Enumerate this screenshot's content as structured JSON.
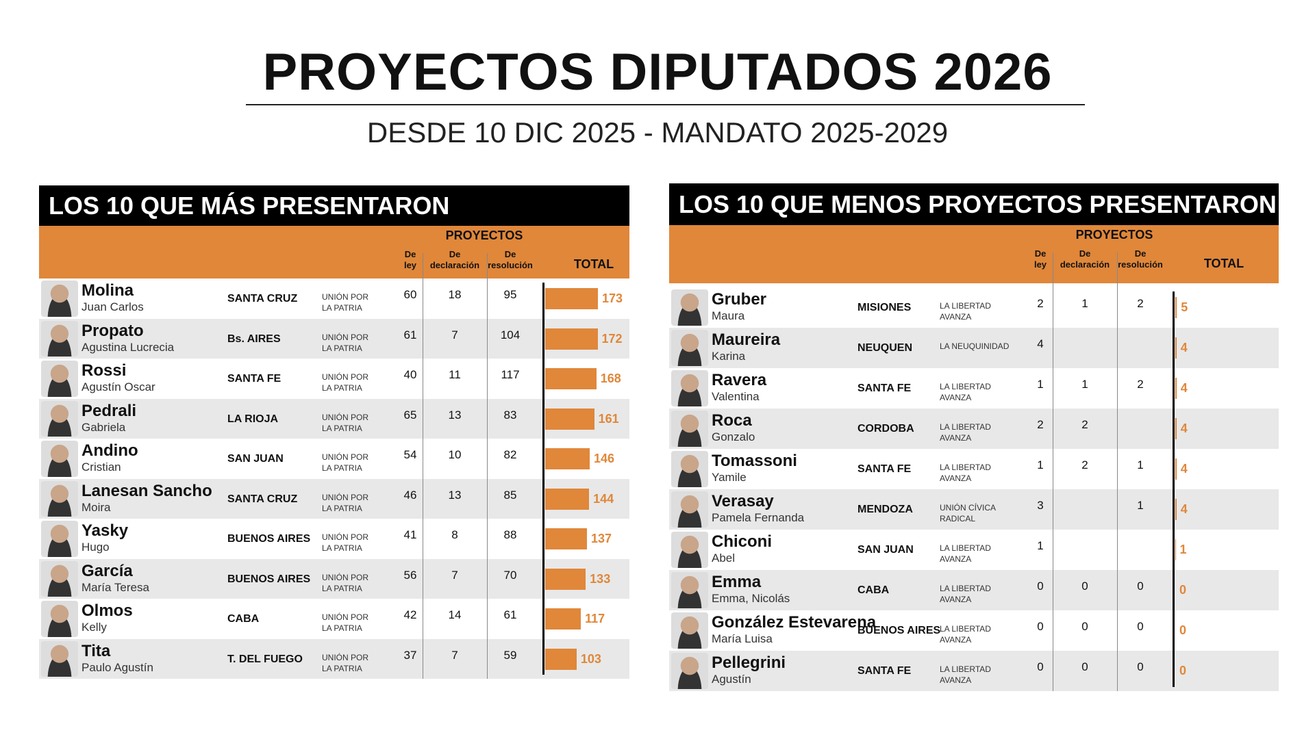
{
  "header": {
    "title": "PROYECTOS DIPUTADOS 2026",
    "subtitle": "DESDE 10 DIC 2025 - MANDATO 2025-2029"
  },
  "tables": [
    {
      "title": "LOS 10 QUE MÁS PRESENTARON",
      "group": "PROYECTOS",
      "columns": [
        "De ley",
        "De declaración",
        "De resolución",
        "TOTAL"
      ],
      "rows": [
        {
          "surname": "Molina",
          "first_name": "Juan Carlos",
          "province": "SANTA CRUZ",
          "party": "UNIÓN POR LA PATRIA",
          "de_ley": 60,
          "de_declaracion": 18,
          "de_resolucion": 95,
          "total": 173
        },
        {
          "surname": "Propato",
          "first_name": "Agustina Lucrecia",
          "province": "Bs. AIRES",
          "party": "UNIÓN POR LA PATRIA",
          "de_ley": 61,
          "de_declaracion": 7,
          "de_resolucion": 104,
          "total": 172
        },
        {
          "surname": "Rossi",
          "first_name": "Agustín Oscar",
          "province": "SANTA FE",
          "party": "UNIÓN POR LA PATRIA",
          "de_ley": 40,
          "de_declaracion": 11,
          "de_resolucion": 117,
          "total": 168
        },
        {
          "surname": "Pedrali",
          "first_name": "Gabriela",
          "province": "LA RIOJA",
          "party": "UNIÓN POR LA PATRIA",
          "de_ley": 65,
          "de_declaracion": 13,
          "de_resolucion": 83,
          "total": 161
        },
        {
          "surname": "Andino",
          "first_name": "Cristian",
          "province": "SAN JUAN",
          "party": "UNIÓN POR LA PATRIA",
          "de_ley": 54,
          "de_declaracion": 10,
          "de_resolucion": 82,
          "total": 146
        },
        {
          "surname": "Lanesan Sancho",
          "first_name": "Moira",
          "province": "SANTA CRUZ",
          "party": "UNIÓN POR LA PATRIA",
          "de_ley": 46,
          "de_declaracion": 13,
          "de_resolucion": 85,
          "total": 144
        },
        {
          "surname": "Yasky",
          "first_name": "Hugo",
          "province": "BUENOS AIRES",
          "party": "UNIÓN POR LA PATRIA",
          "de_ley": 41,
          "de_declaracion": 8,
          "de_resolucion": 88,
          "total": 137
        },
        {
          "surname": "García",
          "first_name": "María Teresa",
          "province": "BUENOS AIRES",
          "party": "UNIÓN POR LA PATRIA",
          "de_ley": 56,
          "de_declaracion": 7,
          "de_resolucion": 70,
          "total": 133
        },
        {
          "surname": "Olmos",
          "first_name": "Kelly",
          "province": "CABA",
          "party": "UNIÓN POR LA PATRIA",
          "de_ley": 42,
          "de_declaracion": 14,
          "de_resolucion": 61,
          "total": 117
        },
        {
          "surname": "Tita",
          "first_name": "Paulo Agustín",
          "province": "T. DEL FUEGO",
          "party": "UNIÓN POR LA PATRIA",
          "de_ley": 37,
          "de_declaracion": 7,
          "de_resolucion": 59,
          "total": 103
        }
      ]
    },
    {
      "title": "LOS 10 QUE MENOS PROYECTOS PRESENTARON",
      "group": "PROYECTOS",
      "columns": [
        "De ley",
        "De declaración",
        "De resolución",
        "TOTAL"
      ],
      "rows": [
        {
          "surname": "Gruber",
          "first_name": "Maura",
          "province": "MISIONES",
          "party": "LA LIBERTAD AVANZA",
          "de_ley": 2,
          "de_declaracion": 1,
          "de_resolucion": 2,
          "total": 5
        },
        {
          "surname": "Maureira",
          "first_name": "Karina",
          "province": "NEUQUEN",
          "party": "LA NEUQUINIDAD",
          "de_ley": 4,
          "de_declaracion": null,
          "de_resolucion": null,
          "total": 4
        },
        {
          "surname": "Ravera",
          "first_name": "Valentina",
          "province": "SANTA FE",
          "party": "LA LIBERTAD AVANZA",
          "de_ley": 1,
          "de_declaracion": 1,
          "de_resolucion": 2,
          "total": 4
        },
        {
          "surname": "Roca",
          "first_name": "Gonzalo",
          "province": "CORDOBA",
          "party": "LA LIBERTAD AVANZA",
          "de_ley": 2,
          "de_declaracion": 2,
          "de_resolucion": null,
          "total": 4
        },
        {
          "surname": "Tomassoni",
          "first_name": "Yamile",
          "province": "SANTA FE",
          "party": "LA LIBERTAD AVANZA",
          "de_ley": 1,
          "de_declaracion": 2,
          "de_resolucion": 1,
          "total": 4
        },
        {
          "surname": "Verasay",
          "first_name": "Pamela Fernanda",
          "province": "MENDOZA",
          "party": "UNIÓN CÍVICA RADICAL",
          "de_ley": 3,
          "de_declaracion": null,
          "de_resolucion": 1,
          "total": 4
        },
        {
          "surname": "Chiconi",
          "first_name": "Abel",
          "province": "SAN JUAN",
          "party": "LA LIBERTAD AVANZA",
          "de_ley": 1,
          "de_declaracion": null,
          "de_resolucion": null,
          "total": 1
        },
        {
          "surname": "Emma",
          "first_name": "Emma, Nicolás",
          "province": "CABA",
          "party": "LA LIBERTAD AVANZA",
          "de_ley": 0,
          "de_declaracion": 0,
          "de_resolucion": 0,
          "total": 0
        },
        {
          "surname": "González Estevarena",
          "first_name": "María Luisa",
          "province": "BUENOS AIRES",
          "party": "LA LIBERTAD AVANZA",
          "de_ley": 0,
          "de_declaracion": 0,
          "de_resolucion": 0,
          "total": 0
        },
        {
          "surname": "Pellegrini",
          "first_name": "Agustín",
          "province": "SANTA FE",
          "party": "LA LIBERTAD AVANZA",
          "de_ley": 0,
          "de_declaracion": 0,
          "de_resolucion": 0,
          "total": 0
        }
      ]
    }
  ]
}
